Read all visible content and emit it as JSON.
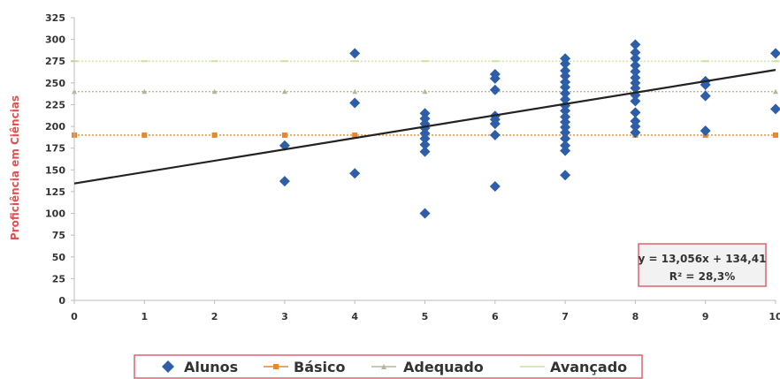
{
  "chart_data": {
    "type": "scatter",
    "ylabel": "Proficiência em Ciências",
    "xlabel": "",
    "xlim": [
      0,
      10
    ],
    "ylim": [
      0,
      325
    ],
    "x_ticks": [
      "0",
      "1",
      "2",
      "3",
      "4",
      "5",
      "6",
      "7",
      "8",
      "9",
      "10"
    ],
    "y_ticks": [
      "0",
      "25",
      "50",
      "75",
      "100",
      "125",
      "150",
      "175",
      "200",
      "225",
      "250",
      "275",
      "300",
      "325"
    ],
    "grid": false,
    "legend_position": "bottom",
    "colors": {
      "alunos": "#2e5ea8",
      "basico": "#e8872b",
      "adequado": "#b5b59a",
      "avancado": "#c9e49a",
      "trendline": "#222222",
      "ylabel": "#e15050",
      "box_border": "#e06070"
    },
    "series": [
      {
        "name": "Alunos",
        "kind": "scatter",
        "marker": "diamond",
        "points": [
          [
            3,
            137
          ],
          [
            3,
            178
          ],
          [
            4,
            146
          ],
          [
            4,
            227
          ],
          [
            4,
            284
          ],
          [
            5,
            100
          ],
          [
            5,
            171
          ],
          [
            5,
            179
          ],
          [
            5,
            186
          ],
          [
            5,
            192
          ],
          [
            5,
            198
          ],
          [
            5,
            203
          ],
          [
            5,
            209
          ],
          [
            5,
            215
          ],
          [
            6,
            131
          ],
          [
            6,
            190
          ],
          [
            6,
            203
          ],
          [
            6,
            208
          ],
          [
            6,
            212
          ],
          [
            6,
            242
          ],
          [
            6,
            255
          ],
          [
            6,
            260
          ],
          [
            7,
            144
          ],
          [
            7,
            172
          ],
          [
            7,
            178
          ],
          [
            7,
            186
          ],
          [
            7,
            193
          ],
          [
            7,
            199
          ],
          [
            7,
            205
          ],
          [
            7,
            211
          ],
          [
            7,
            218
          ],
          [
            7,
            224
          ],
          [
            7,
            231
          ],
          [
            7,
            238
          ],
          [
            7,
            245
          ],
          [
            7,
            251
          ],
          [
            7,
            258
          ],
          [
            7,
            264
          ],
          [
            7,
            272
          ],
          [
            7,
            278
          ],
          [
            8,
            193
          ],
          [
            8,
            200
          ],
          [
            8,
            206
          ],
          [
            8,
            216
          ],
          [
            8,
            229
          ],
          [
            8,
            236
          ],
          [
            8,
            244
          ],
          [
            8,
            250
          ],
          [
            8,
            256
          ],
          [
            8,
            263
          ],
          [
            8,
            270
          ],
          [
            8,
            278
          ],
          [
            8,
            285
          ],
          [
            8,
            294
          ],
          [
            9,
            195
          ],
          [
            9,
            235
          ],
          [
            9,
            248
          ],
          [
            9,
            252
          ],
          [
            10,
            220
          ],
          [
            10,
            284
          ]
        ]
      },
      {
        "name": "Básico",
        "kind": "reference",
        "y": 190
      },
      {
        "name": "Adequado",
        "kind": "reference",
        "y": 240
      },
      {
        "name": "Avançado",
        "kind": "reference",
        "y": 275
      }
    ],
    "trendline": {
      "slope": 13.056,
      "intercept": 134.41,
      "equation": "y = 13,056x + 134,41",
      "r2": "R² = 28,3%"
    }
  }
}
